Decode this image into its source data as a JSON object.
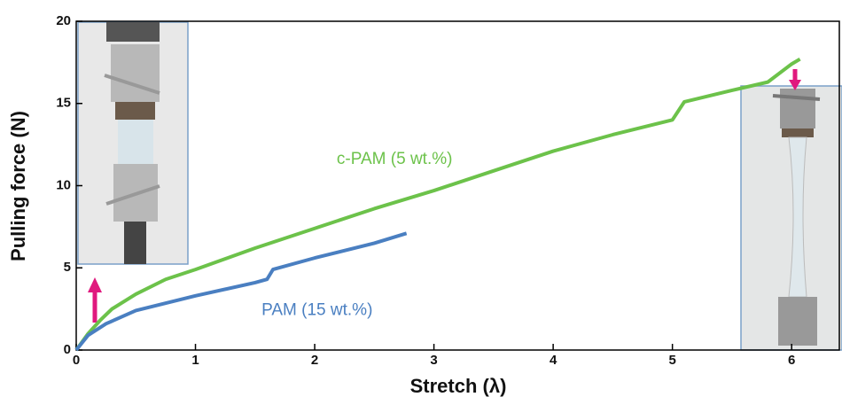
{
  "chart_data": {
    "type": "line",
    "x_label": "Stretch (λ)",
    "y_label": "Pulling force (N)",
    "xlim": [
      0,
      6.4
    ],
    "ylim": [
      0,
      20
    ],
    "xticks": [
      0,
      1,
      2,
      3,
      4,
      5,
      6
    ],
    "yticks": [
      0,
      5,
      10,
      15,
      20
    ],
    "series": [
      {
        "name": "c-PAM (5 wt.%)",
        "color": "#6cc24a",
        "x": [
          0,
          0.1,
          0.2,
          0.3,
          0.5,
          0.75,
          1,
          1.5,
          2,
          2.5,
          3,
          3.5,
          4,
          4.5,
          5,
          5.1,
          5.5,
          5.8,
          6,
          6.07
        ],
        "values": [
          0,
          1.0,
          1.8,
          2.5,
          3.4,
          4.3,
          4.9,
          6.2,
          7.4,
          8.6,
          9.7,
          10.9,
          12.1,
          13.1,
          14.0,
          15.1,
          15.8,
          16.3,
          17.4,
          17.7
        ]
      },
      {
        "name": "PAM (15 wt.%)",
        "color": "#4a7fc1",
        "x": [
          0,
          0.1,
          0.25,
          0.5,
          1,
          1.5,
          1.6,
          1.65,
          2,
          2.5,
          2.77
        ],
        "values": [
          0,
          0.9,
          1.6,
          2.4,
          3.3,
          4.1,
          4.3,
          4.9,
          5.6,
          6.5,
          7.1
        ]
      }
    ]
  }
}
